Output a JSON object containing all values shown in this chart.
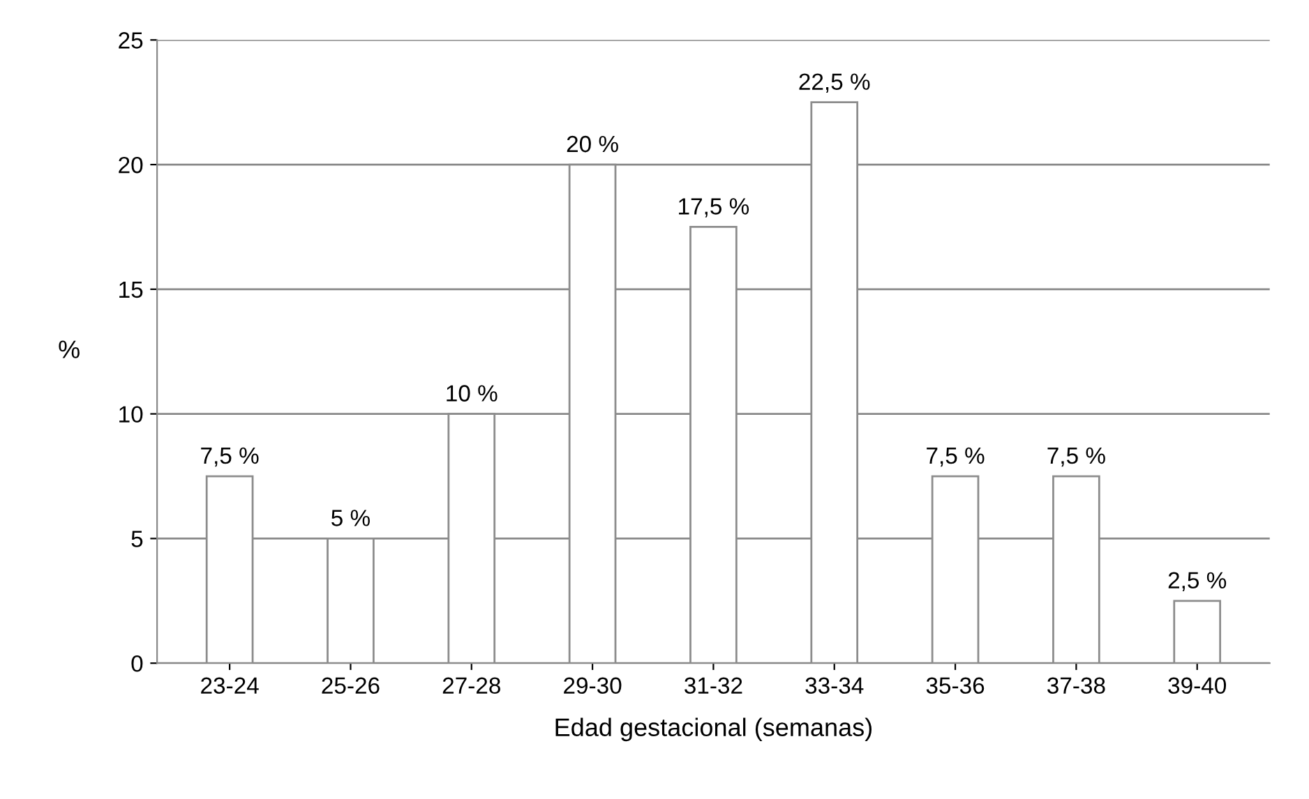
{
  "chart_data": {
    "type": "bar",
    "xlabel": "Edad gestacional (semanas)",
    "ylabel": "%",
    "categories": [
      "23-24",
      "25-26",
      "27-28",
      "29-30",
      "31-32",
      "33-34",
      "35-36",
      "37-38",
      "39-40"
    ],
    "values": [
      7.5,
      5,
      10,
      20,
      17.5,
      22.5,
      7.5,
      7.5,
      2.5
    ],
    "value_labels": [
      "7,5 %",
      "5 %",
      "10 %",
      "20 %",
      "17,5 %",
      "22,5 %",
      "7,5 %",
      "7,5 %",
      "2,5 %"
    ],
    "color": "#ffffff",
    "ylim": [
      0,
      25
    ],
    "yticks": [
      0,
      5,
      10,
      15,
      20,
      25
    ],
    "grid": "y",
    "legend": false
  }
}
